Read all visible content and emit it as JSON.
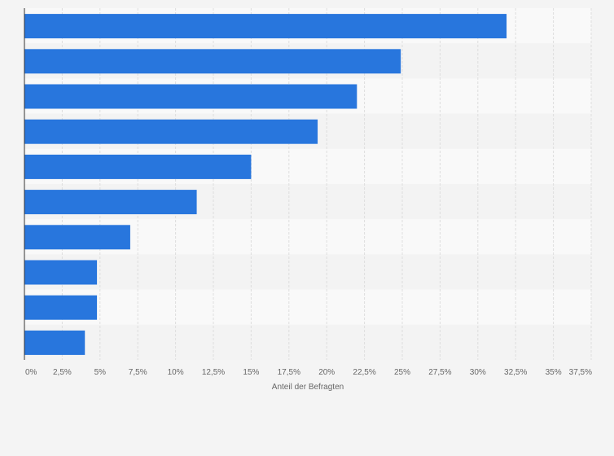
{
  "chart_data": {
    "type": "bar",
    "orientation": "horizontal",
    "title": "",
    "xlabel": "Anteil der Befragten",
    "ylabel": "",
    "categories": [
      "",
      "",
      "",
      "",
      "",
      "",
      "",
      "",
      "",
      ""
    ],
    "values": [
      31.9,
      24.9,
      22.0,
      19.4,
      15.0,
      11.4,
      7.0,
      4.8,
      4.8,
      4.0
    ],
    "xlim": [
      0,
      37.5
    ],
    "xticks": [
      0,
      2.5,
      5,
      7.5,
      10,
      12.5,
      15,
      17.5,
      20,
      22.5,
      25,
      27.5,
      30,
      32.5,
      35,
      37.5
    ],
    "xtick_labels": [
      "0%",
      "2,5%",
      "5%",
      "7,5%",
      "10%",
      "12,5%",
      "15%",
      "17,5%",
      "20%",
      "22,5%",
      "25%",
      "27,5%",
      "30%",
      "32,5%",
      "35%",
      "37,5%"
    ],
    "grid": true,
    "legend": "none",
    "colors": {
      "bar": "#2876dd",
      "band_light": "#f9f9f9",
      "band_dark": "#f3f3f3",
      "grid": "#dedede",
      "axis": "#333333",
      "background": "#f4f4f4"
    }
  }
}
